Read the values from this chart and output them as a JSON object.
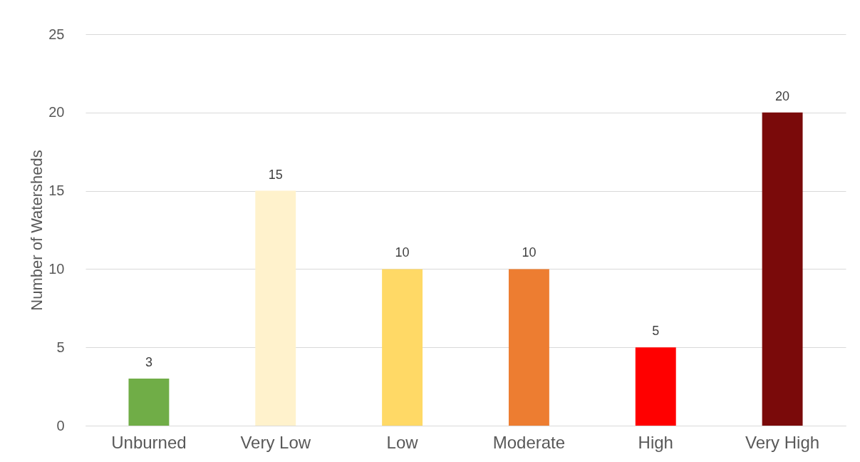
{
  "chart_data": {
    "type": "bar",
    "ylabel": "Number of Watersheds",
    "categories": [
      "Unburned",
      "Very Low",
      "Low",
      "Moderate",
      "High",
      "Very High"
    ],
    "values": [
      3,
      15,
      10,
      10,
      5,
      20
    ],
    "colors": [
      "#70ad47",
      "#fff2cc",
      "#ffd966",
      "#ed7d31",
      "#ff0000",
      "#7a0a0a"
    ],
    "ylim": [
      0,
      25
    ],
    "yticks": [
      0,
      5,
      10,
      15,
      20,
      25
    ],
    "grid": "y",
    "data_labels": true
  }
}
